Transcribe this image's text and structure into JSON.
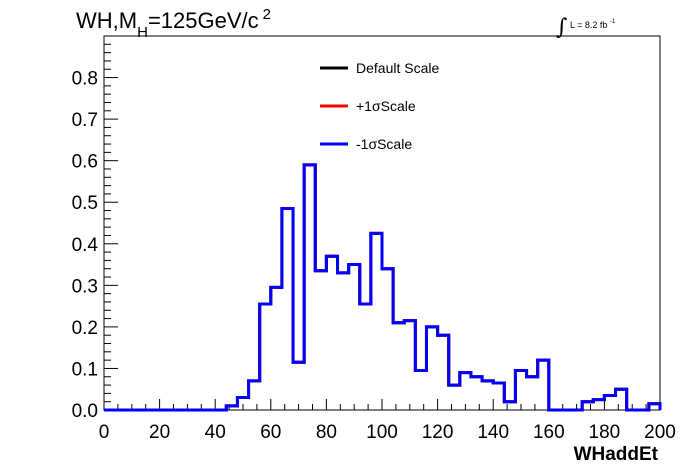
{
  "chart_data": {
    "type": "line",
    "title_parts": {
      "prefix": "WH,M",
      "subscript": "H",
      "middle": "=125GeV/c",
      "superscript": "2"
    },
    "luminosity": {
      "prefix": "L = 8.2 fb",
      "superscript": "-1"
    },
    "xlabel": "WHaddEt",
    "ylabel": "",
    "xlim": [
      0,
      200
    ],
    "ylim": [
      0,
      0.9
    ],
    "x_ticks": [
      "0",
      "20",
      "40",
      "60",
      "80",
      "100",
      "120",
      "140",
      "160",
      "180",
      "200"
    ],
    "y_ticks": [
      "0.0",
      "0.1",
      "0.2",
      "0.3",
      "0.4",
      "0.5",
      "0.6",
      "0.7",
      "0.8"
    ],
    "bin_width": 4,
    "grid": false,
    "legend_position": "top-center",
    "series": [
      {
        "name": "Default Scale",
        "color": "#000000",
        "values": [
          0,
          0,
          0,
          0,
          0,
          0,
          0,
          0,
          0,
          0,
          0,
          0.01,
          0.03,
          0.07,
          0.255,
          0.295,
          0.485,
          0.115,
          0.59,
          0.335,
          0.37,
          0.33,
          0.35,
          0.255,
          0.425,
          0.34,
          0.21,
          0.215,
          0.095,
          0.2,
          0.18,
          0.06,
          0.09,
          0.08,
          0.07,
          0.065,
          0.02,
          0.095,
          0.08,
          0.12,
          0,
          0,
          0,
          0.02,
          0.025,
          0.035,
          0.05,
          0,
          0,
          0.015,
          0
        ]
      },
      {
        "name": "+1σScale",
        "color": "#ff0000",
        "values": [
          0,
          0,
          0,
          0,
          0,
          0,
          0,
          0,
          0,
          0,
          0,
          0.01,
          0.03,
          0.07,
          0.255,
          0.295,
          0.485,
          0.115,
          0.59,
          0.335,
          0.37,
          0.33,
          0.35,
          0.255,
          0.425,
          0.34,
          0.21,
          0.215,
          0.095,
          0.2,
          0.18,
          0.06,
          0.09,
          0.08,
          0.07,
          0.065,
          0.02,
          0.095,
          0.08,
          0.12,
          0,
          0,
          0,
          0.02,
          0.025,
          0.035,
          0.05,
          0,
          0,
          0.015,
          0
        ]
      },
      {
        "name": "-1σScale",
        "color": "#0000ff",
        "values": [
          0,
          0,
          0,
          0,
          0,
          0,
          0,
          0,
          0,
          0,
          0,
          0.01,
          0.03,
          0.07,
          0.255,
          0.295,
          0.485,
          0.115,
          0.59,
          0.335,
          0.37,
          0.33,
          0.35,
          0.255,
          0.425,
          0.34,
          0.21,
          0.215,
          0.095,
          0.2,
          0.18,
          0.06,
          0.09,
          0.08,
          0.07,
          0.065,
          0.02,
          0.095,
          0.08,
          0.12,
          0,
          0,
          0,
          0.02,
          0.025,
          0.035,
          0.05,
          0,
          0,
          0.015,
          0
        ]
      }
    ]
  }
}
